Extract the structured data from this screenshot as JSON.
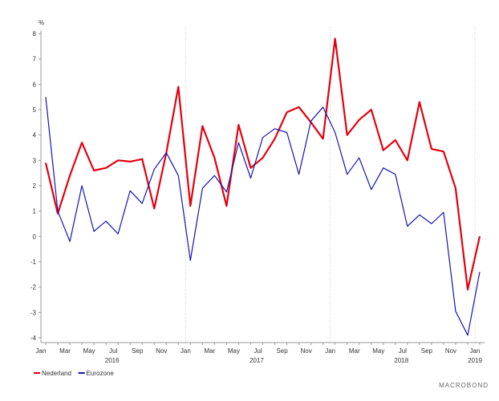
{
  "chart_data": {
    "type": "line",
    "ylabel": "%",
    "ylim": [
      -4,
      8
    ],
    "yticks": [
      -4,
      -3,
      -2,
      -1,
      0,
      1,
      2,
      3,
      4,
      5,
      6,
      7,
      8
    ],
    "x_tick_labels": [
      "Jan",
      "Mar",
      "May",
      "Jul",
      "Sep",
      "Nov",
      "Jan",
      "Mar",
      "May",
      "Jul",
      "Sep",
      "Nov",
      "Jan",
      "Mar",
      "May",
      "Jul",
      "Sep",
      "Nov",
      "Jan"
    ],
    "year_labels": [
      "2016",
      "2017",
      "2018",
      "2019"
    ],
    "x": [
      "2016-01",
      "2016-02",
      "2016-03",
      "2016-04",
      "2016-05",
      "2016-06",
      "2016-07",
      "2016-08",
      "2016-09",
      "2016-10",
      "2016-11",
      "2016-12",
      "2017-01",
      "2017-02",
      "2017-03",
      "2017-04",
      "2017-05",
      "2017-06",
      "2017-07",
      "2017-08",
      "2017-09",
      "2017-10",
      "2017-11",
      "2017-12",
      "2018-01",
      "2018-02",
      "2018-03",
      "2018-04",
      "2018-05",
      "2018-06",
      "2018-07",
      "2018-08",
      "2018-09",
      "2018-10",
      "2018-11",
      "2018-12",
      "2019-01"
    ],
    "series": [
      {
        "name": "Nederland",
        "color": "#e3000f",
        "values": [
          2.9,
          0.9,
          2.4,
          3.7,
          2.6,
          2.7,
          3.0,
          2.95,
          3.05,
          1.1,
          3.3,
          5.9,
          1.2,
          4.35,
          3.1,
          1.2,
          4.4,
          2.7,
          3.1,
          3.85,
          4.9,
          5.1,
          4.5,
          3.85,
          7.8,
          4.0,
          4.6,
          5.0,
          3.4,
          3.8,
          3.0,
          5.3,
          3.45,
          3.35,
          1.9,
          -2.1,
          0.0
        ]
      },
      {
        "name": "Eurozone",
        "color": "#1414b4",
        "values": [
          5.5,
          1.0,
          -0.2,
          2.0,
          0.2,
          0.6,
          0.1,
          1.8,
          1.3,
          2.65,
          3.3,
          2.4,
          -0.95,
          1.9,
          2.4,
          1.75,
          3.7,
          2.3,
          3.9,
          4.25,
          4.1,
          2.45,
          4.55,
          5.1,
          4.1,
          2.45,
          3.1,
          1.85,
          2.7,
          2.45,
          0.4,
          0.85,
          0.5,
          0.95,
          -2.95,
          -3.9,
          -1.4
        ]
      }
    ],
    "legend_position": "bottom-left",
    "grid": false
  },
  "branding": {
    "text": "MACROBOND"
  }
}
